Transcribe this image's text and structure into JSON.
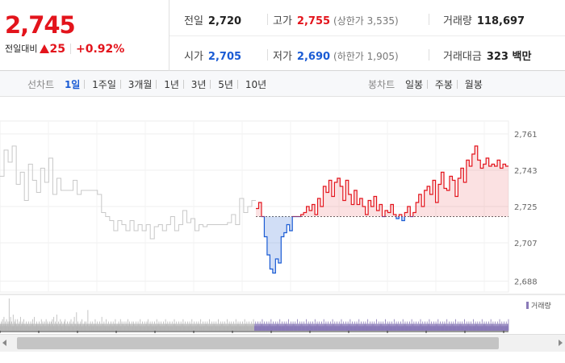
{
  "summary": {
    "current_price": "2,745",
    "change_label": "전일대비",
    "change_amount": "25",
    "change_percent": "+0.92%"
  },
  "stats": {
    "prev_close": {
      "label": "전일",
      "value": "2,720"
    },
    "high": {
      "label": "고가",
      "value": "2,755",
      "sub": "(상한가 3,535)"
    },
    "volume": {
      "label": "거래량",
      "value": "118,697"
    },
    "open": {
      "label": "시가",
      "value": "2,705"
    },
    "low": {
      "label": "저가",
      "value": "2,690",
      "sub": "(하한가 1,905)"
    },
    "trade_value": {
      "label": "거래대금",
      "value": "323 백만"
    }
  },
  "periods": {
    "line_label": "선차트",
    "line_options": [
      "1일",
      "1주일",
      "3개월",
      "1년",
      "3년",
      "5년",
      "10년"
    ],
    "line_active": "1일",
    "candle_label": "봉차트",
    "candle_options": [
      "일봉",
      "주봉",
      "월봉"
    ]
  },
  "colors": {
    "up": "#e3141c",
    "down": "#1a5bd4",
    "prev_day": "#c8c8c8",
    "volume": "#8a7ab8"
  },
  "chart_data": {
    "type": "line",
    "base_price": 2720,
    "ylim": [
      2685,
      2765
    ],
    "yticks": [
      "2,761",
      "2,743",
      "2,725",
      "2,707",
      "2,688"
    ],
    "ytick_values": [
      2761,
      2743,
      2725,
      2707,
      2688
    ],
    "grid": true,
    "series": [
      {
        "values": [
          2740,
          2753,
          2747,
          2755,
          2736,
          2742,
          2728,
          2746,
          2738,
          2732,
          2744,
          2737,
          2749,
          2731,
          2739,
          2733,
          2733,
          2733,
          2738,
          2731,
          2733,
          2733,
          2733,
          2733,
          2731,
          2722,
          2720,
          2718,
          2713,
          2718,
          2716,
          2713,
          2718,
          2713,
          2716,
          2713,
          2716,
          2709,
          2715,
          2716,
          2713,
          2716,
          2720,
          2713,
          2716,
          2723,
          2717,
          2719,
          2713,
          2716,
          2715,
          2716,
          2716,
          2716,
          2716,
          2716,
          2717,
          2721,
          2716,
          2729,
          2722,
          2725,
          2728
        ]
      },
      {
        "values": [
          2724,
          2727,
          2720,
          2710,
          2701,
          2694,
          2692,
          2699,
          2697,
          2710,
          2712,
          2716,
          2713,
          2720,
          2720,
          2720,
          2721,
          2722,
          2725,
          2723,
          2726,
          2721,
          2729,
          2725,
          2735,
          2732,
          2738,
          2730,
          2737,
          2739,
          2735,
          2728,
          2738,
          2731,
          2726,
          2733,
          2726,
          2729,
          2725,
          2721,
          2728,
          2725,
          2730,
          2723,
          2726,
          2720,
          2723,
          2722,
          2726,
          2721,
          2719,
          2721,
          2718,
          2722,
          2725,
          2720,
          2722,
          2727,
          2731,
          2725,
          2733,
          2735,
          2731,
          2738,
          2727,
          2736,
          2742,
          2734,
          2733,
          2740,
          2738,
          2730,
          2739,
          2744,
          2737,
          2748,
          2745,
          2751,
          2755,
          2748,
          2744,
          2746,
          2749,
          2745,
          2746,
          2745,
          2748,
          2744,
          2746,
          2745
        ]
      }
    ],
    "volume_label": "거래량",
    "volume_values": [
      3,
      2,
      3,
      4,
      2,
      3,
      5,
      2,
      3,
      2,
      6,
      3,
      2,
      4,
      3,
      2,
      3,
      5,
      2,
      3,
      2,
      4,
      2,
      3,
      14,
      4,
      3,
      2,
      6,
      3,
      2,
      4,
      2,
      3,
      2,
      7,
      2,
      3,
      2,
      4,
      3,
      5,
      2,
      3,
      2,
      3,
      2,
      5,
      3,
      2,
      3,
      2,
      4,
      2,
      3,
      6,
      2,
      3,
      2,
      3,
      4,
      2,
      3,
      2,
      5,
      3,
      2,
      3,
      2,
      3,
      2,
      4,
      3,
      2,
      3,
      2,
      3,
      4,
      2,
      3,
      2,
      3,
      2,
      4,
      2,
      3,
      2,
      3,
      5,
      3,
      2,
      3,
      2,
      6,
      2,
      3,
      2,
      3,
      2,
      4,
      3,
      2,
      3,
      2,
      3,
      2,
      4,
      3,
      2,
      3,
      2,
      3,
      5,
      2,
      3,
      2,
      4,
      2,
      3,
      2,
      3,
      4,
      2,
      3,
      2,
      5,
      2,
      3,
      2,
      4,
      3,
      2,
      3,
      2,
      3,
      4,
      2,
      3,
      2,
      4,
      2,
      3,
      5,
      2,
      3,
      2,
      6,
      3,
      2,
      3,
      4,
      2,
      3,
      2,
      7,
      3,
      2,
      3,
      2,
      4,
      2,
      3,
      2,
      3,
      5,
      2,
      3,
      2,
      4,
      2,
      3,
      2,
      3,
      2,
      4,
      3,
      2,
      5,
      2,
      3,
      2,
      3,
      2,
      4,
      2,
      3,
      2,
      3,
      2,
      4,
      2,
      3,
      2,
      5,
      2,
      3,
      2,
      3,
      2,
      4,
      2,
      3,
      6,
      2,
      3,
      2,
      3,
      2,
      8,
      3,
      2,
      3,
      4,
      2,
      3,
      2,
      3,
      2,
      3,
      4,
      2,
      3,
      2,
      5,
      2,
      3,
      2,
      3,
      2,
      3,
      4,
      2,
      3,
      2,
      4,
      2,
      3,
      2,
      3,
      9,
      2,
      3,
      2,
      3,
      2,
      3,
      4,
      2,
      3,
      2,
      3,
      2,
      4,
      2,
      3,
      2,
      3,
      2,
      3,
      5,
      2,
      3,
      2,
      3,
      2,
      4,
      2,
      3,
      2,
      3,
      2,
      4,
      2,
      3,
      2,
      3,
      2,
      6,
      2,
      3,
      2,
      3,
      2,
      4,
      2,
      3,
      2,
      3,
      2,
      5,
      2,
      3,
      2,
      3,
      2,
      4,
      2,
      3,
      2,
      3,
      2,
      3,
      4,
      2,
      3,
      2,
      3,
      2,
      4,
      2,
      3,
      2,
      3,
      2,
      5,
      2,
      3,
      2,
      3,
      2,
      3,
      3,
      2,
      4,
      2,
      3,
      2,
      3,
      5,
      2,
      3,
      2,
      4,
      2,
      3,
      2,
      3,
      2,
      4,
      3,
      2,
      3,
      2,
      4,
      2,
      3,
      2,
      3,
      5,
      2,
      3,
      2,
      3,
      4,
      2,
      3,
      2,
      3,
      2,
      4,
      2,
      3,
      2,
      3,
      4,
      2,
      3,
      2,
      3,
      2,
      4,
      2,
      3,
      2,
      3,
      2,
      4,
      2,
      3,
      2,
      3,
      2,
      5,
      2,
      3,
      2,
      3,
      2,
      4,
      2,
      3,
      2,
      3,
      2,
      4,
      2,
      3,
      2,
      3,
      2,
      4,
      2,
      3,
      5,
      2,
      3,
      2,
      3,
      2,
      4,
      2,
      3,
      2,
      3,
      2,
      4,
      2,
      3,
      2,
      3,
      2,
      4,
      2,
      3,
      2,
      3,
      2,
      5,
      2,
      3,
      2,
      3,
      2,
      4,
      2,
      3,
      2,
      3,
      2,
      4,
      2,
      3,
      2,
      3,
      2,
      4,
      2,
      3,
      2,
      3,
      2,
      5,
      2,
      3,
      2,
      3,
      2,
      4,
      2,
      3,
      2,
      3,
      2,
      4,
      2,
      3,
      2,
      3,
      2,
      4,
      2,
      3,
      2,
      3,
      2,
      5,
      2,
      3,
      2,
      3,
      2,
      4,
      2,
      3,
      2,
      3,
      2,
      4,
      2,
      3,
      2,
      3,
      2,
      4,
      2,
      3,
      2,
      3,
      2,
      5,
      2,
      3,
      2,
      3,
      2,
      4,
      2,
      3,
      2,
      3,
      2,
      4,
      2,
      3,
      2,
      3,
      2,
      4,
      2,
      3,
      2,
      3,
      2,
      5,
      2,
      3,
      2,
      3,
      2,
      4,
      2,
      3,
      2,
      3,
      2,
      4,
      2,
      3,
      2,
      3,
      2,
      4,
      2,
      3,
      2,
      3,
      2,
      5,
      2,
      3,
      2,
      3,
      2,
      4,
      2,
      3,
      2,
      3,
      2,
      4,
      2,
      3,
      2,
      3,
      2,
      4,
      2,
      3,
      2,
      3,
      2,
      5,
      2,
      3,
      2,
      3,
      2,
      4,
      2,
      3,
      2,
      3,
      2,
      4,
      2,
      3,
      2,
      3,
      2,
      4,
      2,
      3,
      2,
      3,
      2,
      5,
      2,
      3,
      2,
      3,
      2,
      4,
      2,
      3,
      2,
      3,
      2,
      4,
      2,
      3,
      2,
      3,
      2,
      4,
      2,
      3,
      2,
      3,
      2,
      5,
      2,
      3,
      2,
      3,
      2,
      4,
      2,
      3,
      2,
      3,
      2,
      4,
      2,
      3,
      2,
      3,
      2,
      4,
      2,
      3,
      2,
      3,
      2,
      5,
      2,
      3,
      2,
      3,
      2,
      4,
      2,
      3,
      2,
      3,
      2,
      4,
      2,
      3,
      2,
      3,
      2,
      4,
      2,
      3,
      2,
      3,
      2,
      5,
      2,
      3,
      2,
      3,
      2,
      4,
      2,
      3,
      2,
      3,
      2,
      4,
      2,
      3,
      2,
      3,
      2,
      4,
      2,
      3,
      2,
      3,
      2,
      5,
      2,
      3,
      2,
      3,
      2,
      4,
      2,
      3,
      2,
      3,
      2,
      4,
      2,
      3,
      2,
      3,
      2,
      4,
      2,
      3,
      2,
      3,
      2,
      5,
      2,
      3,
      2,
      3,
      2,
      4,
      2,
      3,
      2,
      3,
      2,
      4,
      2,
      3,
      2,
      3,
      2,
      4,
      2,
      3,
      2,
      3,
      2,
      5,
      2,
      3,
      2,
      3,
      2,
      4,
      2,
      3,
      2,
      3,
      2,
      4,
      2,
      3,
      2,
      3,
      2,
      4,
      2,
      3,
      2,
      3,
      2,
      5,
      2,
      3,
      2,
      3,
      2,
      4,
      2,
      3,
      2,
      3,
      2,
      4,
      2,
      3,
      2,
      3,
      2,
      4,
      2,
      3,
      2,
      3,
      2,
      5,
      2,
      3,
      2,
      3,
      2,
      4,
      2,
      3,
      2,
      3,
      2,
      4,
      2,
      3,
      2,
      3,
      2,
      4,
      2,
      3,
      2,
      3,
      2,
      5,
      2,
      3,
      2,
      3,
      2,
      4,
      2,
      3,
      2,
      3,
      2,
      4,
      2,
      3,
      2,
      3,
      2,
      4,
      2,
      3,
      2,
      3,
      2,
      5,
      2,
      3,
      2,
      3,
      2,
      4,
      2,
      3,
      2,
      3,
      2,
      4,
      2,
      3,
      2,
      3,
      2,
      4,
      2,
      3,
      2,
      3,
      2,
      5,
      2,
      3,
      2,
      3,
      2,
      4,
      2,
      3,
      2,
      3,
      2,
      4,
      2,
      3,
      2,
      3,
      2,
      4,
      2,
      3,
      2,
      3,
      2,
      5,
      2,
      3,
      2,
      3,
      2,
      4,
      2,
      3,
      2,
      3,
      2,
      4,
      2,
      3,
      2,
      3,
      2,
      4,
      2,
      3,
      2,
      3,
      2,
      5,
      2,
      3,
      2,
      3,
      2,
      4,
      2,
      3,
      2,
      3,
      2,
      4,
      2,
      3,
      2,
      3,
      2,
      4,
      2,
      3,
      2,
      3,
      2,
      5,
      2,
      3,
      2,
      3,
      2,
      4,
      2,
      3,
      2,
      3,
      2,
      4,
      2,
      3,
      2,
      3,
      2,
      4,
      2,
      3,
      2,
      3,
      2,
      5,
      2,
      3,
      2,
      3,
      2,
      4,
      2,
      3,
      2,
      3,
      2,
      4,
      2,
      3,
      2,
      3,
      2,
      4,
      2,
      3,
      2,
      3,
      2,
      5,
      2,
      3,
      2,
      3,
      2,
      4,
      2,
      3,
      2,
      3,
      2,
      4,
      2,
      3,
      2,
      3,
      2,
      4,
      2,
      3,
      2,
      3,
      2,
      5,
      2,
      3,
      2,
      3,
      2,
      4,
      2,
      3,
      2,
      3,
      2,
      4,
      2,
      3,
      2,
      3,
      2,
      4,
      2,
      3,
      2,
      3,
      2,
      5,
      2,
      3,
      2,
      3,
      2,
      4,
      2,
      3,
      2,
      3,
      2,
      4,
      2,
      3,
      2,
      3,
      2,
      4,
      2,
      3,
      2,
      3,
      2,
      5,
      2,
      3,
      2,
      3,
      2,
      4,
      2,
      3,
      2,
      3,
      2,
      4,
      2,
      3,
      2,
      3,
      2,
      4,
      2,
      3,
      2,
      3,
      2,
      5,
      2,
      3,
      2,
      3,
      2,
      4,
      2,
      3,
      2,
      3,
      2,
      4,
      2,
      3,
      2,
      3,
      2,
      4,
      2,
      3,
      2,
      3,
      2,
      5,
      2,
      3,
      2,
      3,
      2,
      4,
      2,
      3,
      2,
      3,
      2,
      4,
      2,
      3,
      2,
      3,
      2,
      4,
      2,
      3,
      2,
      3,
      2,
      5,
      2,
      3,
      2,
      3,
      2,
      4,
      2,
      3,
      2,
      3,
      2,
      4,
      2,
      3,
      2,
      3,
      2,
      4,
      2,
      3,
      2,
      3,
      2,
      5,
      2,
      3,
      2,
      3,
      2,
      4,
      2,
      3,
      2,
      3,
      2,
      4,
      2,
      3,
      2,
      3,
      2,
      4,
      2,
      3,
      2,
      3,
      2,
      5,
      2,
      3,
      2,
      3,
      2,
      4,
      2,
      3,
      2,
      3,
      2,
      4,
      2,
      3,
      2,
      3,
      2,
      4,
      2,
      3,
      2,
      3,
      2,
      5,
      2,
      3,
      2,
      3,
      2,
      4,
      2,
      3,
      2,
      3,
      2,
      4,
      2,
      3,
      2,
      3,
      2,
      4,
      2,
      3,
      2,
      3,
      2,
      5,
      2,
      3,
      2,
      3,
      2,
      4,
      2,
      3,
      2,
      3,
      2,
      4,
      2,
      3,
      2,
      3,
      2,
      4,
      2,
      3,
      2,
      3,
      2,
      5,
      2,
      3,
      2,
      3,
      2,
      4,
      2,
      3,
      2,
      3,
      2,
      4,
      2,
      3,
      2,
      3,
      2,
      4,
      2,
      3,
      2,
      3,
      2,
      5,
      2,
      3,
      2,
      3,
      2,
      4,
      2,
      3,
      2,
      3,
      2,
      4,
      2,
      3,
      2,
      3,
      2,
      4,
      2,
      3,
      2,
      3,
      2,
      5,
      2,
      3,
      2,
      3,
      2,
      4,
      2,
      3,
      2,
      3,
      2,
      4,
      2,
      3,
      2,
      3,
      2,
      4,
      2,
      3,
      2,
      3,
      2,
      5,
      2,
      3,
      2,
      3,
      2,
      4,
      2,
      3,
      2,
      3,
      2,
      4,
      2,
      3,
      2,
      3,
      2,
      4,
      2,
      3,
      2,
      3,
      2,
      5,
      2,
      3,
      2,
      3,
      2,
      4,
      2,
      3,
      2,
      3,
      2,
      4,
      2,
      3,
      2,
      3,
      2,
      4,
      2,
      3,
      2,
      3,
      2,
      5,
      2,
      3,
      2,
      3,
      2,
      4,
      2,
      3,
      2,
      3,
      2,
      4,
      2,
      3,
      2,
      3,
      2,
      4,
      2,
      3,
      2,
      3,
      2,
      5
    ]
  }
}
